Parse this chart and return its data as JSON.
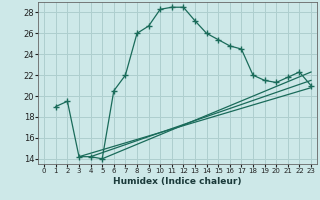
{
  "title": "",
  "xlabel": "Humidex (Indice chaleur)",
  "bg_color": "#cde8e8",
  "line_color": "#1a6b5a",
  "grid_color": "#aecece",
  "xlim": [
    -0.5,
    23.5
  ],
  "ylim": [
    13.5,
    29.0
  ],
  "yticks": [
    14,
    16,
    18,
    20,
    22,
    24,
    26,
    28
  ],
  "xticks": [
    0,
    1,
    2,
    3,
    4,
    5,
    6,
    7,
    8,
    9,
    10,
    11,
    12,
    13,
    14,
    15,
    16,
    17,
    18,
    19,
    20,
    21,
    22,
    23
  ],
  "main_x": [
    1,
    2,
    3,
    4,
    5,
    6,
    7,
    8,
    9,
    10,
    11,
    12,
    13,
    14,
    15,
    16,
    17,
    18,
    19,
    20,
    21,
    22,
    23
  ],
  "main_y": [
    19.0,
    19.5,
    14.2,
    14.2,
    14.0,
    20.5,
    22.0,
    26.0,
    26.7,
    28.3,
    28.5,
    28.5,
    27.2,
    26.0,
    25.4,
    24.8,
    24.5,
    22.0,
    21.5,
    21.3,
    21.8,
    22.3,
    21.0
  ],
  "line2_x": [
    3,
    23
  ],
  "line2_y": [
    14.2,
    20.8
  ],
  "line3_x": [
    4,
    23
  ],
  "line3_y": [
    14.2,
    21.5
  ],
  "line4_x": [
    5,
    23
  ],
  "line4_y": [
    14.0,
    22.3
  ]
}
